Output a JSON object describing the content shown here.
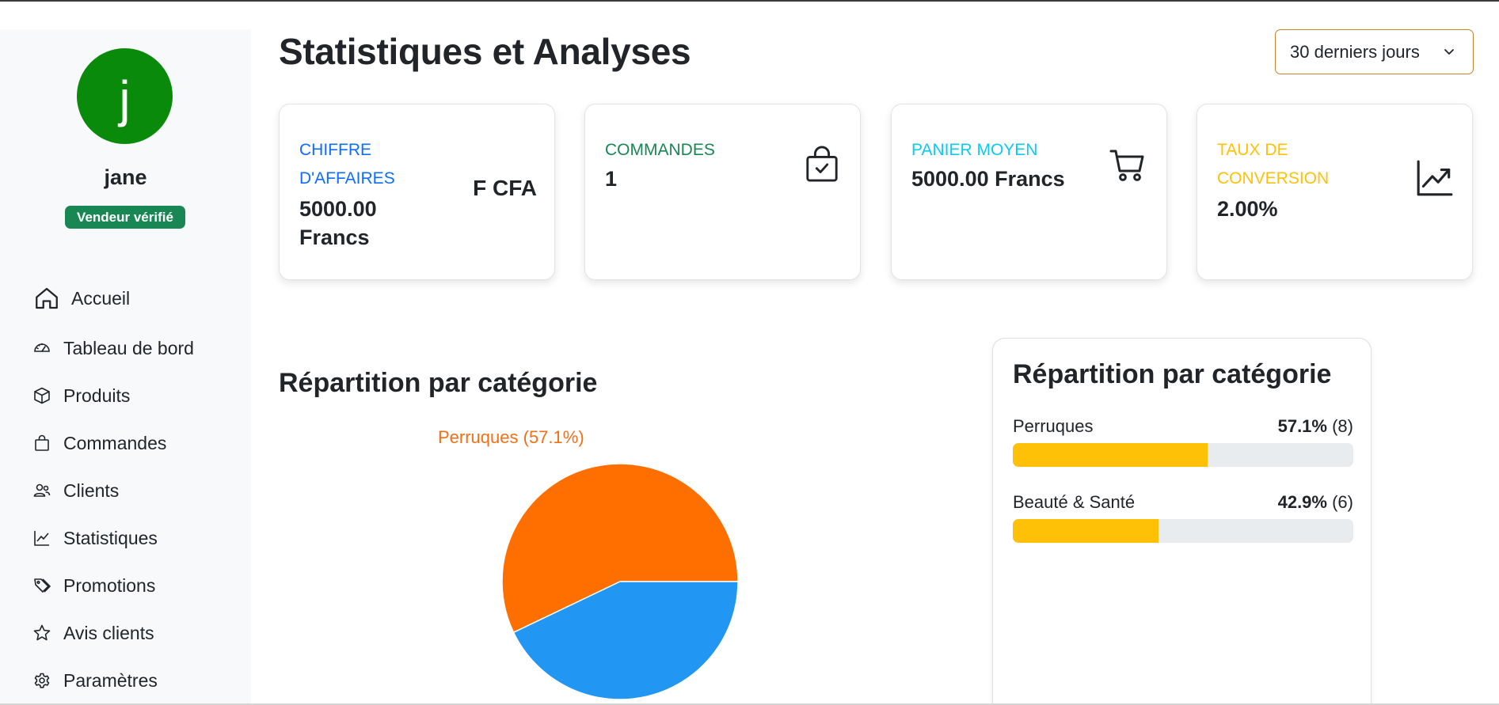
{
  "colors": {
    "avatar_bg": "#0a8a0a",
    "verified_badge": "#198754",
    "revenue_label": "#0d6efd",
    "orders_label": "#198754",
    "basket_label": "#0dcaf0",
    "conversion_label": "#ffc107",
    "pie_perruques": "#ff6f00",
    "pie_beaute": "#2196f3",
    "progress_fill": "#ffc107",
    "period_border": "#c8822a"
  },
  "sidebar": {
    "avatar_letter": "j",
    "username": "jane",
    "badge": "Vendeur vérifié",
    "items": [
      {
        "label": "Accueil",
        "icon": "home-icon"
      },
      {
        "label": "Tableau de bord",
        "icon": "speedometer-icon"
      },
      {
        "label": "Produits",
        "icon": "box-icon"
      },
      {
        "label": "Commandes",
        "icon": "bag-icon"
      },
      {
        "label": "Clients",
        "icon": "people-icon"
      },
      {
        "label": "Statistiques",
        "icon": "line-chart-icon"
      },
      {
        "label": "Promotions",
        "icon": "tags-icon"
      },
      {
        "label": "Avis clients",
        "icon": "star-icon"
      },
      {
        "label": "Paramètres",
        "icon": "gear-icon"
      }
    ]
  },
  "header": {
    "title": "Statistiques et Analyses",
    "period": "30 derniers jours"
  },
  "cards": {
    "revenue": {
      "label_line1": "CHIFFRE",
      "label_line2": "D'AFFAIRES",
      "value_line1": "5000.00",
      "value_line2": "Francs",
      "side": "F CFA"
    },
    "orders": {
      "label": "COMMANDES",
      "value": "1",
      "icon": "bag-check-icon"
    },
    "basket": {
      "label": "PANIER MOYEN",
      "value": "5000.00 Francs",
      "icon": "cart-icon"
    },
    "conversion": {
      "label_line1": "TAUX DE",
      "label_line2": "CONVERSION",
      "value": "2.00%",
      "icon": "graph-up-icon"
    }
  },
  "chart_section": {
    "title": "Répartition par catégorie",
    "pie_label": "Perruques (57.1%)"
  },
  "chart_data": {
    "type": "pie",
    "title": "Répartition par catégorie",
    "categories": [
      "Perruques",
      "Beauté & Santé"
    ],
    "values": [
      57.1,
      42.9
    ],
    "counts": [
      8,
      6
    ],
    "colors": [
      "#ff6f00",
      "#2196f3"
    ]
  },
  "panel": {
    "title": "Répartition par catégorie",
    "rows": [
      {
        "name": "Perruques",
        "pct": "57.1%",
        "count": "(8)",
        "fraction": 0.571
      },
      {
        "name": "Beauté & Santé",
        "pct": "42.9%",
        "count": "(6)",
        "fraction": 0.429
      }
    ]
  }
}
